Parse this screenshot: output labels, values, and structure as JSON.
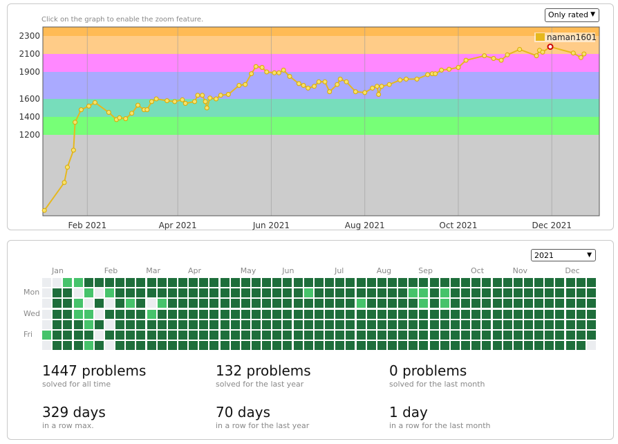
{
  "rating_graph": {
    "hint": "Click on the graph to enable the zoom feature.",
    "filter": "Only rated",
    "legend_name": "naman1601",
    "colors": {
      "line": "#e6b81e",
      "point": "#f7e26b",
      "highlight": "#cc0000"
    },
    "bands": [
      {
        "from": 0,
        "to": 1200,
        "color": "#cccccc"
      },
      {
        "from": 1200,
        "to": 1400,
        "color": "#77ff77"
      },
      {
        "from": 1400,
        "to": 1600,
        "color": "#77ddbb"
      },
      {
        "from": 1600,
        "to": 1900,
        "color": "#aaaaff"
      },
      {
        "from": 1900,
        "to": 2100,
        "color": "#ff88ff"
      },
      {
        "from": 2100,
        "to": 2300,
        "color": "#ffcc88"
      },
      {
        "from": 2300,
        "to": 2400,
        "color": "#ffbb55"
      }
    ]
  },
  "chart_data": {
    "type": "line",
    "title": "",
    "xlabel": "",
    "ylabel": "",
    "y_ticks": [
      1200,
      1400,
      1600,
      1900,
      2100,
      2300
    ],
    "x_ticks": [
      "Feb 2021",
      "Apr 2021",
      "Jun 2021",
      "Aug 2021",
      "Oct 2021",
      "Dec 2021"
    ],
    "x_tick_dates": [
      "2021-02-01",
      "2021-04-01",
      "2021-06-01",
      "2021-08-01",
      "2021-10-01",
      "2021-12-01"
    ],
    "xlim": [
      "2021-01-03",
      "2022-01-01"
    ],
    "grid": true,
    "legend_position": "top-right",
    "series": [
      {
        "name": "naman1601",
        "points": [
          [
            "2021-01-04",
            360
          ],
          [
            "2021-01-17",
            670
          ],
          [
            "2021-01-19",
            840
          ],
          [
            "2021-01-23",
            1030
          ],
          [
            "2021-01-24",
            1340
          ],
          [
            "2021-01-28",
            1480
          ],
          [
            "2021-02-02",
            1520
          ],
          [
            "2021-02-06",
            1560
          ],
          [
            "2021-02-15",
            1450
          ],
          [
            "2021-02-20",
            1370
          ],
          [
            "2021-02-22",
            1390
          ],
          [
            "2021-02-26",
            1380
          ],
          [
            "2021-03-02",
            1440
          ],
          [
            "2021-03-06",
            1530
          ],
          [
            "2021-03-10",
            1480
          ],
          [
            "2021-03-12",
            1480
          ],
          [
            "2021-03-15",
            1570
          ],
          [
            "2021-03-18",
            1600
          ],
          [
            "2021-03-25",
            1580
          ],
          [
            "2021-03-30",
            1570
          ],
          [
            "2021-04-04",
            1590
          ],
          [
            "2021-04-06",
            1550
          ],
          [
            "2021-04-12",
            1570
          ],
          [
            "2021-04-14",
            1640
          ],
          [
            "2021-04-17",
            1640
          ],
          [
            "2021-04-19",
            1570
          ],
          [
            "2021-04-20",
            1500
          ],
          [
            "2021-04-22",
            1610
          ],
          [
            "2021-04-26",
            1600
          ],
          [
            "2021-04-29",
            1640
          ],
          [
            "2021-05-04",
            1650
          ],
          [
            "2021-05-11",
            1750
          ],
          [
            "2021-05-15",
            1760
          ],
          [
            "2021-05-19",
            1880
          ],
          [
            "2021-05-22",
            1960
          ],
          [
            "2021-05-26",
            1950
          ],
          [
            "2021-05-29",
            1900
          ],
          [
            "2021-06-03",
            1890
          ],
          [
            "2021-06-06",
            1890
          ],
          [
            "2021-06-09",
            1920
          ],
          [
            "2021-06-13",
            1850
          ],
          [
            "2021-06-19",
            1770
          ],
          [
            "2021-06-22",
            1750
          ],
          [
            "2021-06-25",
            1720
          ],
          [
            "2021-06-29",
            1740
          ],
          [
            "2021-07-02",
            1790
          ],
          [
            "2021-07-06",
            1790
          ],
          [
            "2021-07-09",
            1680
          ],
          [
            "2021-07-14",
            1760
          ],
          [
            "2021-07-16",
            1820
          ],
          [
            "2021-07-20",
            1790
          ],
          [
            "2021-07-26",
            1680
          ],
          [
            "2021-08-01",
            1670
          ],
          [
            "2021-08-06",
            1720
          ],
          [
            "2021-08-09",
            1740
          ],
          [
            "2021-08-10",
            1650
          ],
          [
            "2021-08-12",
            1740
          ],
          [
            "2021-08-17",
            1760
          ],
          [
            "2021-08-24",
            1810
          ],
          [
            "2021-08-28",
            1820
          ],
          [
            "2021-09-04",
            1820
          ],
          [
            "2021-09-11",
            1870
          ],
          [
            "2021-09-14",
            1880
          ],
          [
            "2021-09-16",
            1880
          ],
          [
            "2021-09-20",
            1920
          ],
          [
            "2021-09-25",
            1930
          ],
          [
            "2021-10-01",
            1950
          ],
          [
            "2021-10-06",
            2030
          ],
          [
            "2021-10-18",
            2080
          ],
          [
            "2021-10-24",
            2050
          ],
          [
            "2021-10-29",
            2030
          ],
          [
            "2021-11-02",
            2090
          ],
          [
            "2021-11-10",
            2150
          ],
          [
            "2021-11-21",
            2080
          ],
          [
            "2021-11-23",
            2140
          ],
          [
            "2021-11-25",
            2120
          ],
          [
            "2021-11-30",
            2180
          ],
          [
            "2021-12-15",
            2110
          ],
          [
            "2021-12-20",
            2060
          ],
          [
            "2021-12-22",
            2100
          ]
        ],
        "highlight": [
          "2021-11-30",
          2180
        ]
      }
    ]
  },
  "activity": {
    "year": "2021",
    "months": [
      "Jan",
      "Feb",
      "Mar",
      "Apr",
      "May",
      "Jun",
      "Jul",
      "Aug",
      "Sep",
      "Oct",
      "Nov",
      "Dec"
    ],
    "day_labels": [
      "Mon",
      "Wed",
      "Fri"
    ],
    "palette": [
      "#ebedf0",
      "#a1df9a",
      "#46c36b",
      "#22944a",
      "#1e6e3b"
    ],
    "heatmap": [
      [
        0,
        0,
        2,
        2,
        4,
        4,
        4,
        4,
        4,
        4,
        4,
        4,
        4,
        4,
        4,
        4,
        4,
        4,
        4,
        4,
        4,
        4,
        4,
        4,
        4,
        4,
        4,
        4,
        4,
        4,
        4,
        4,
        4,
        4,
        4,
        4,
        4,
        4,
        4,
        4,
        4,
        4,
        4,
        4,
        4,
        4,
        4,
        4,
        4,
        4,
        4,
        4,
        4
      ],
      [
        0,
        4,
        4,
        0,
        2,
        0,
        2,
        4,
        4,
        4,
        4,
        4,
        4,
        4,
        4,
        4,
        4,
        4,
        4,
        4,
        4,
        4,
        4,
        4,
        4,
        2,
        4,
        4,
        4,
        4,
        4,
        4,
        4,
        4,
        4,
        2,
        2,
        4,
        2,
        4,
        4,
        4,
        4,
        4,
        4,
        4,
        4,
        4,
        4,
        4,
        4,
        4,
        4
      ],
      [
        0,
        4,
        4,
        2,
        0,
        4,
        0,
        4,
        2,
        4,
        0,
        2,
        4,
        4,
        4,
        4,
        4,
        4,
        4,
        4,
        4,
        4,
        4,
        4,
        4,
        4,
        4,
        4,
        4,
        4,
        2,
        4,
        4,
        4,
        4,
        4,
        2,
        4,
        2,
        4,
        4,
        4,
        4,
        4,
        4,
        4,
        4,
        4,
        4,
        4,
        4,
        4,
        4
      ],
      [
        0,
        4,
        4,
        2,
        2,
        0,
        4,
        4,
        4,
        4,
        2,
        4,
        4,
        4,
        4,
        4,
        4,
        4,
        4,
        4,
        4,
        4,
        4,
        4,
        4,
        4,
        4,
        4,
        4,
        4,
        4,
        4,
        4,
        4,
        4,
        4,
        4,
        4,
        4,
        4,
        4,
        4,
        4,
        4,
        4,
        4,
        4,
        4,
        4,
        4,
        4,
        4,
        4
      ],
      [
        0,
        4,
        4,
        4,
        2,
        4,
        0,
        4,
        4,
        4,
        4,
        4,
        4,
        4,
        4,
        4,
        4,
        4,
        4,
        4,
        4,
        4,
        4,
        4,
        4,
        4,
        4,
        4,
        4,
        4,
        4,
        4,
        4,
        4,
        4,
        4,
        4,
        4,
        4,
        4,
        4,
        4,
        4,
        4,
        4,
        4,
        4,
        4,
        4,
        4,
        4,
        4,
        4
      ],
      [
        2,
        4,
        4,
        4,
        4,
        0,
        4,
        4,
        4,
        4,
        4,
        4,
        4,
        4,
        4,
        4,
        4,
        4,
        4,
        4,
        4,
        4,
        4,
        4,
        4,
        4,
        4,
        4,
        4,
        4,
        4,
        4,
        4,
        4,
        4,
        4,
        4,
        4,
        4,
        4,
        4,
        4,
        4,
        4,
        4,
        4,
        4,
        4,
        4,
        4,
        4,
        4,
        4
      ],
      [
        0,
        4,
        4,
        4,
        2,
        4,
        0,
        4,
        4,
        4,
        4,
        4,
        4,
        4,
        4,
        4,
        4,
        4,
        4,
        4,
        4,
        4,
        4,
        4,
        4,
        4,
        4,
        4,
        4,
        4,
        4,
        4,
        4,
        4,
        4,
        4,
        4,
        4,
        4,
        4,
        4,
        4,
        4,
        4,
        4,
        4,
        4,
        4,
        4,
        4,
        4,
        4,
        0
      ]
    ]
  },
  "stats": [
    {
      "num": "1447 problems",
      "desc": "solved for all time"
    },
    {
      "num": "132 problems",
      "desc": "solved for the last year"
    },
    {
      "num": "0 problems",
      "desc": "solved for the last month"
    },
    {
      "num": "329 days",
      "desc": "in a row max."
    },
    {
      "num": "70 days",
      "desc": "in a row for the last year"
    },
    {
      "num": "1 day",
      "desc": "in a row for the last month"
    }
  ]
}
